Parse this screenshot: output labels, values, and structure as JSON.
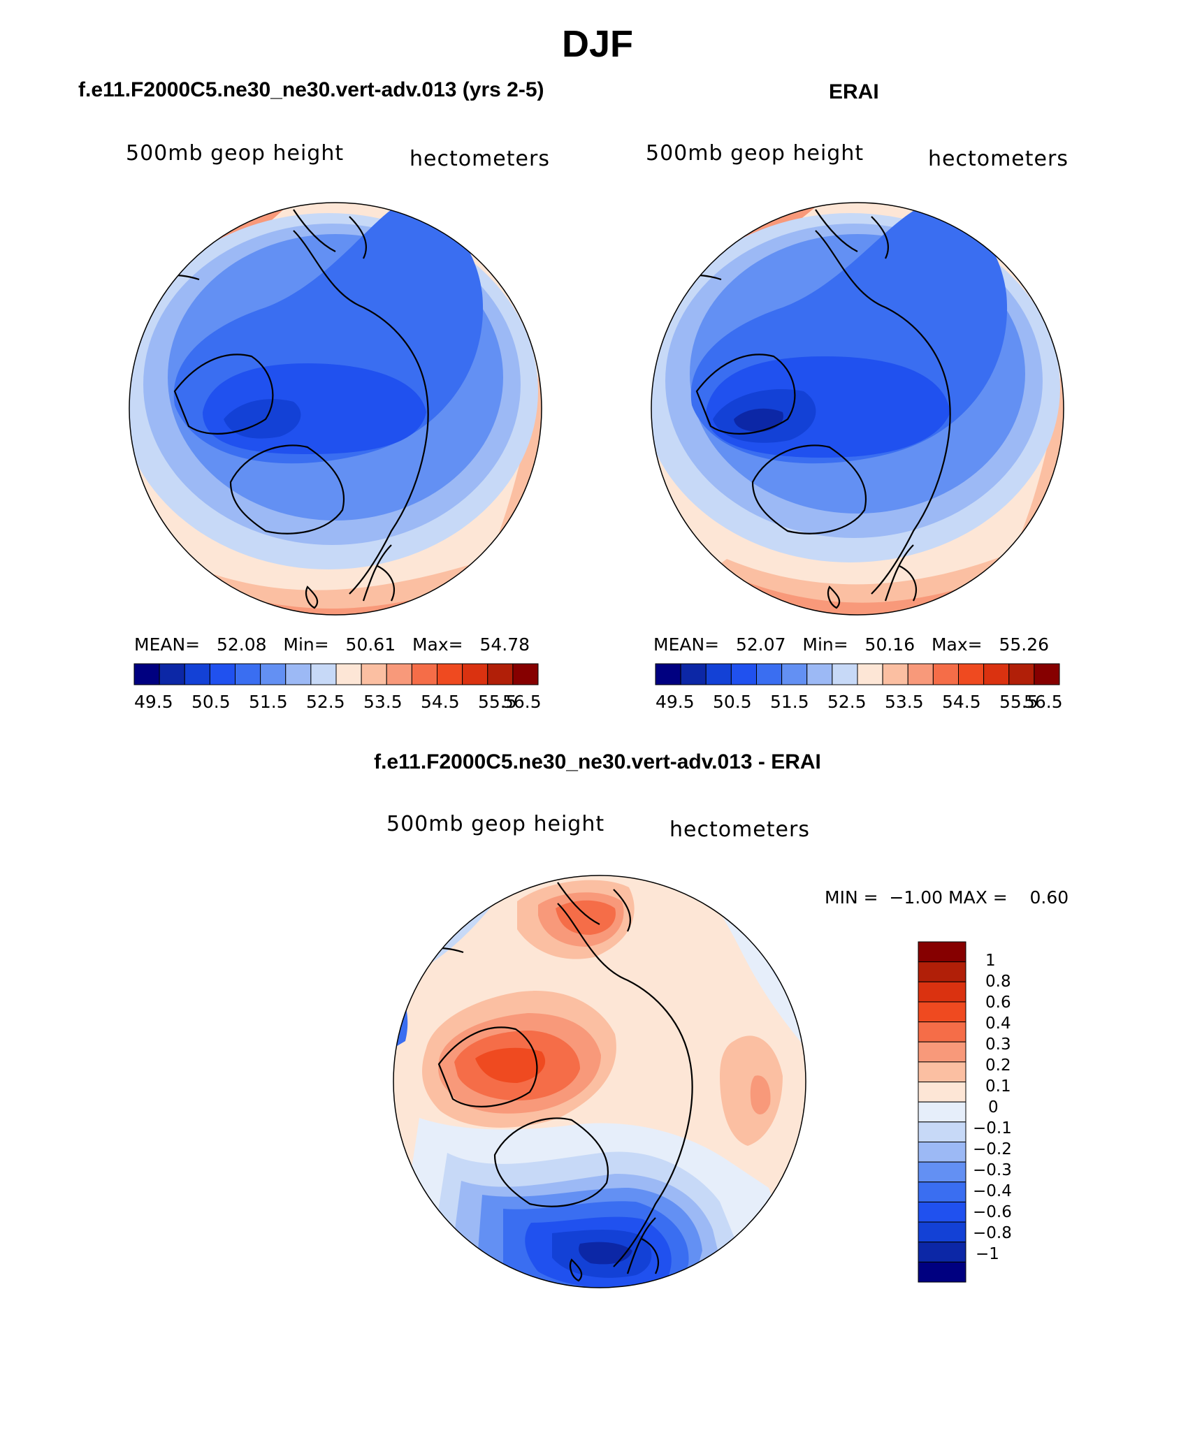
{
  "figure": {
    "season": "DJF",
    "bottom_title": "f.e11.F2000C5.ne30_ne30.vert-adv.013 - ERAI"
  },
  "colors": {
    "abs_scale": [
      "#000080",
      "#0c27a6",
      "#1341d6",
      "#2051ef",
      "#3a6ef1",
      "#6390f3",
      "#9cb9f5",
      "#c7d9f7",
      "#fde6d6",
      "#fbbfa2",
      "#f8997a",
      "#f56d48",
      "#ef4a20",
      "#da3210",
      "#b11f08",
      "#860000"
    ],
    "diff_scale": [
      "#000080",
      "#0c27a6",
      "#1341d6",
      "#2051ef",
      "#3a6ef1",
      "#6390f3",
      "#9cb9f5",
      "#c7d9f7",
      "#e6eefa",
      "#fde6d6",
      "#fbbfa2",
      "#f8997a",
      "#f56d48",
      "#ef4a20",
      "#da3210",
      "#b11f08",
      "#860000"
    ],
    "coast": "#000000"
  },
  "panels": [
    {
      "id": "model",
      "title": "f.e11.F2000C5.ne30_ne30.vert-adv.013 (yrs 2-5)",
      "left_string": "500mb geop height",
      "right_string": "hectometers",
      "stats": {
        "mean_label": "MEAN=",
        "mean": "52.08",
        "min_label": "Min=",
        "min": "50.61",
        "max_label": "Max=",
        "max": "54.78"
      },
      "colorbar_labels": [
        "49.5",
        "50.5",
        "51.5",
        "52.5",
        "53.5",
        "54.5",
        "55.5",
        "56.5"
      ]
    },
    {
      "id": "erai",
      "title": "ERAI",
      "left_string": "500mb geop height",
      "right_string": "hectometers",
      "stats": {
        "mean_label": "MEAN=",
        "mean": "52.07",
        "min_label": "Min=",
        "min": "50.16",
        "max_label": "Max=",
        "max": "55.26"
      },
      "colorbar_labels": [
        "49.5",
        "50.5",
        "51.5",
        "52.5",
        "53.5",
        "54.5",
        "55.5",
        "56.5"
      ]
    },
    {
      "id": "diff",
      "left_string": "500mb geop height",
      "right_string": "hectometers",
      "stats": {
        "min_label": "MIN =",
        "min": "−1.00",
        "max_label": "MAX =",
        "max": "0.60"
      },
      "colorbar_labels": [
        "1",
        "0.8",
        "0.6",
        "0.4",
        "0.3",
        "0.2",
        "0.1",
        "0",
        "−0.1",
        "−0.2",
        "−0.3",
        "−0.4",
        "−0.6",
        "−0.8",
        "−1"
      ]
    }
  ],
  "chart_data": [
    {
      "type": "heatmap",
      "title": "f.e11.F2000C5.ne30_ne30.vert-adv.013 (yrs 2-5)",
      "field": "500mb geop height",
      "units": "hectometers",
      "projection": "north polar stereographic",
      "mean": 52.08,
      "min": 50.61,
      "max": 54.78,
      "contour_levels": [
        49.5,
        50,
        50.5,
        51,
        51.5,
        52,
        52.5,
        53,
        53.5,
        54,
        54.5,
        55,
        55.5,
        56,
        56.5
      ]
    },
    {
      "type": "heatmap",
      "title": "ERAI",
      "field": "500mb geop height",
      "units": "hectometers",
      "projection": "north polar stereographic",
      "mean": 52.07,
      "min": 50.16,
      "max": 55.26,
      "contour_levels": [
        49.5,
        50,
        50.5,
        51,
        51.5,
        52,
        52.5,
        53,
        53.5,
        54,
        54.5,
        55,
        55.5,
        56,
        56.5
      ]
    },
    {
      "type": "heatmap",
      "title": "f.e11.F2000C5.ne30_ne30.vert-adv.013 - ERAI",
      "field": "500mb geop height",
      "units": "hectometers",
      "projection": "north polar stereographic",
      "min": -1.0,
      "max": 0.6,
      "contour_levels": [
        -1,
        -0.8,
        -0.6,
        -0.4,
        -0.3,
        -0.2,
        -0.1,
        0,
        0.1,
        0.2,
        0.3,
        0.4,
        0.6,
        0.8,
        1
      ]
    }
  ]
}
